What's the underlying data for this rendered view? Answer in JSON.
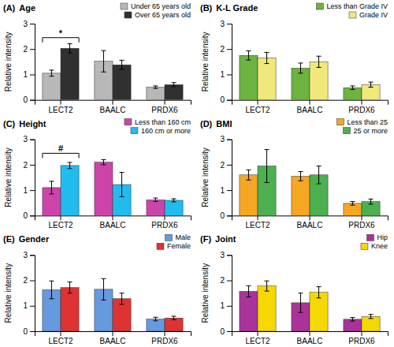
{
  "chart_data": [
    {
      "type": "bar",
      "panel_label": "(A)",
      "title": "Age",
      "y_label": "Relative intensity",
      "categories": [
        "LECT2",
        "BAALC",
        "PRDX6"
      ],
      "series": [
        {
          "name": "Under 65 years old",
          "color": "#b8b8b8",
          "values": [
            1.05,
            1.52,
            0.5
          ],
          "errors": [
            0.12,
            0.42,
            0.05
          ]
        },
        {
          "name": "Over 65 years old",
          "color": "#303030",
          "values": [
            2.03,
            1.38,
            0.6
          ],
          "errors": [
            0.18,
            0.18,
            0.08
          ]
        }
      ],
      "ylim": [
        0,
        3
      ],
      "yticks": [
        0,
        1,
        2,
        3
      ],
      "legend": "upper right",
      "annotations": [
        {
          "text": "*",
          "category": "LECT2",
          "y": 2.45
        }
      ]
    },
    {
      "type": "bar",
      "panel_label": "(B)",
      "title": "K-L Grade",
      "y_label": "Relative intensity",
      "categories": [
        "LECT2",
        "BAALC",
        "PRDX6"
      ],
      "series": [
        {
          "name": "Less than Grade IV",
          "color": "#6db33f",
          "values": [
            1.75,
            1.25,
            0.48
          ],
          "errors": [
            0.18,
            0.2,
            0.07
          ]
        },
        {
          "name": "Grade IV",
          "color": "#f0e87a",
          "values": [
            1.65,
            1.5,
            0.6
          ],
          "errors": [
            0.22,
            0.22,
            0.1
          ]
        }
      ],
      "ylim": [
        0,
        3
      ],
      "yticks": [
        0,
        1,
        2,
        3
      ],
      "legend": "upper right"
    },
    {
      "type": "bar",
      "panel_label": "(C)",
      "title": "Height",
      "y_label": "Relative intensity",
      "categories": [
        "LECT2",
        "BAALC",
        "PRDX6"
      ],
      "series": [
        {
          "name": "Less than 160 cm",
          "color": "#cc44aa",
          "values": [
            1.1,
            2.1,
            0.62
          ],
          "errors": [
            0.25,
            0.1,
            0.07
          ]
        },
        {
          "name": "160 cm or more",
          "color": "#22bbee",
          "values": [
            1.97,
            1.22,
            0.6
          ],
          "errors": [
            0.12,
            0.48,
            0.06
          ]
        }
      ],
      "ylim": [
        0,
        3
      ],
      "yticks": [
        0,
        1,
        2,
        3
      ],
      "legend": "upper right",
      "annotations": [
        {
          "text": "#",
          "category": "LECT2",
          "y": 2.45
        }
      ]
    },
    {
      "type": "bar",
      "panel_label": "(D)",
      "title": "BMI",
      "y_label": "Relative intensity",
      "categories": [
        "LECT2",
        "BAALC",
        "PRDX6"
      ],
      "series": [
        {
          "name": "Less than 25",
          "color": "#f5a623",
          "values": [
            1.6,
            1.55,
            0.48
          ],
          "errors": [
            0.2,
            0.18,
            0.07
          ]
        },
        {
          "name": "25 or more",
          "color": "#4caf50",
          "values": [
            1.95,
            1.6,
            0.55
          ],
          "errors": [
            0.65,
            0.35,
            0.1
          ]
        }
      ],
      "ylim": [
        0,
        3
      ],
      "yticks": [
        0,
        1,
        2,
        3
      ],
      "legend": "upper right"
    },
    {
      "type": "bar",
      "panel_label": "(E)",
      "title": "Gender",
      "y_label": "Relative intensity",
      "categories": [
        "LECT2",
        "BAALC",
        "PRDX6"
      ],
      "series": [
        {
          "name": "Male",
          "color": "#6699dd",
          "values": [
            1.63,
            1.65,
            0.48
          ],
          "errors": [
            0.35,
            0.42,
            0.07
          ]
        },
        {
          "name": "Female",
          "color": "#dd3333",
          "values": [
            1.72,
            1.28,
            0.52
          ],
          "errors": [
            0.22,
            0.22,
            0.07
          ]
        }
      ],
      "ylim": [
        0,
        3
      ],
      "yticks": [
        0,
        1,
        2,
        3
      ],
      "legend": "upper right"
    },
    {
      "type": "bar",
      "panel_label": "(F)",
      "title": "Joint",
      "y_label": "Relative intensity",
      "categories": [
        "LECT2",
        "BAALC",
        "PRDX6"
      ],
      "series": [
        {
          "name": "Hip",
          "color": "#aa3399",
          "values": [
            1.57,
            1.12,
            0.47
          ],
          "errors": [
            0.22,
            0.38,
            0.07
          ]
        },
        {
          "name": "Knee",
          "color": "#f5d800",
          "values": [
            1.78,
            1.53,
            0.58
          ],
          "errors": [
            0.2,
            0.22,
            0.08
          ]
        }
      ],
      "ylim": [
        0,
        3
      ],
      "yticks": [
        0,
        1,
        2,
        3
      ],
      "legend": "upper right"
    }
  ]
}
